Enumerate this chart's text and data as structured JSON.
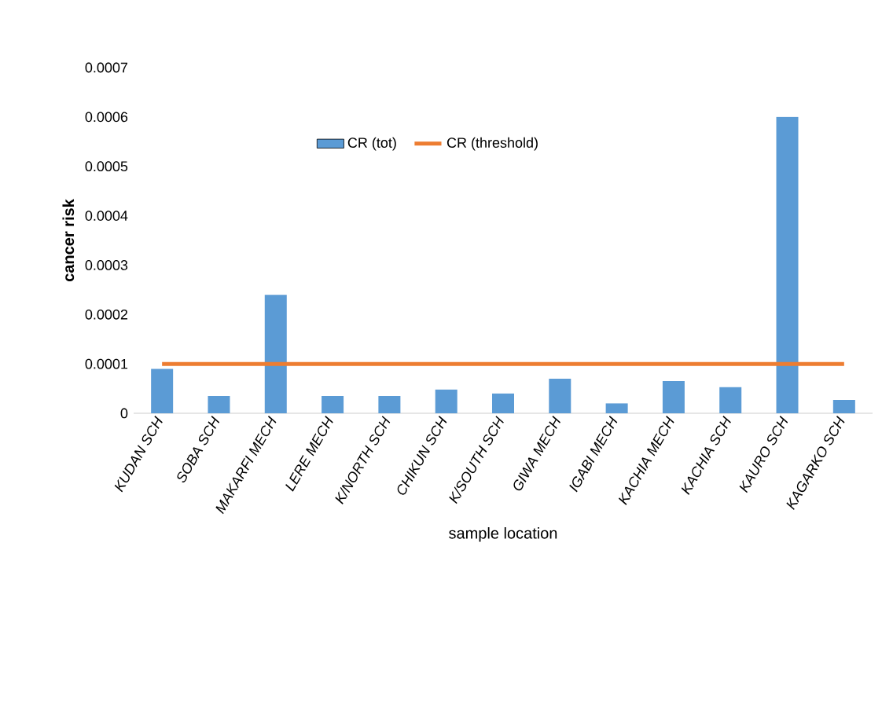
{
  "chart_data": {
    "type": "bar",
    "xlabel": "sample location",
    "ylabel": "cancer risk",
    "categories": [
      "KUDAN SCH",
      "SOBA SCH",
      "MAKARFI MECH",
      "LERE MECH",
      "K/NORTH SCH",
      "CHIKUN SCH",
      "K/SOUTH SCH",
      "GIWA MECH",
      "IGABI MECH",
      "KACHIA MECH",
      "KACHIA SCH",
      "KAURO SCH",
      "KAGARKO SCH"
    ],
    "series": [
      {
        "name": "CR  (tot)",
        "color": "#5b9bd5",
        "values": [
          9e-05,
          3.5e-05,
          0.00024,
          3.5e-05,
          3.5e-05,
          4.8e-05,
          4e-05,
          7e-05,
          2e-05,
          6.5e-05,
          5.3e-05,
          0.0006,
          2.7e-05
        ]
      },
      {
        "name": "CR (threshold)",
        "type": "line",
        "color": "#ed7d31",
        "values": [
          0.0001,
          0.0001,
          0.0001,
          0.0001,
          0.0001,
          0.0001,
          0.0001,
          0.0001,
          0.0001,
          0.0001,
          0.0001,
          0.0001,
          0.0001
        ]
      }
    ],
    "ylim": [
      0,
      0.0007
    ],
    "yticks": [
      0,
      0.0001,
      0.0002,
      0.0003,
      0.0004,
      0.0005,
      0.0006,
      0.0007
    ],
    "grid": false,
    "legend": "top"
  }
}
